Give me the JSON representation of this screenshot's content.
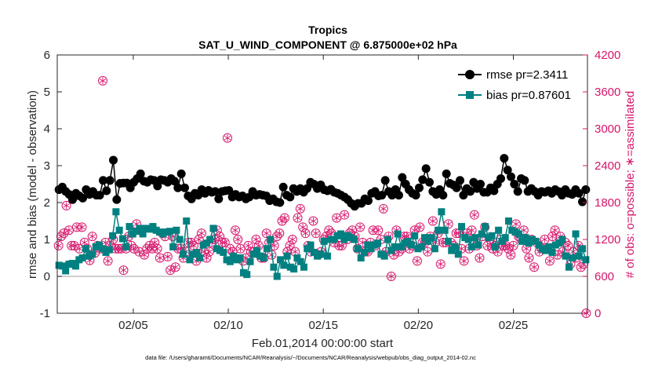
{
  "chart_data": {
    "type": "line",
    "title": "Tropics",
    "subtitle": "SAT_U_WIND_COMPONENT @ 6.875000e+02 hPa",
    "xlabel": "Feb.01,2014 00:00:00 start",
    "ylabel": "rmse and bias (model - observation)",
    "ylabel_right": "# of obs: o=possible; ∗=assimilated",
    "footer": "data file: /Users/gharamti/Documents/NCAR/Reanalysis/~/Documents/NCAR/Reanalysis/webpub/obs_diag_output_2014-02.nc",
    "xlim": [
      1.0,
      28.9
    ],
    "ylim": [
      -1,
      6
    ],
    "ylim_right": [
      0,
      4200
    ],
    "x_ticks": [
      5,
      10,
      15,
      20,
      25
    ],
    "x_tick_labels": [
      "02/05",
      "02/10",
      "02/15",
      "02/20",
      "02/25"
    ],
    "y_ticks": [
      "-1",
      "0",
      "1",
      "2",
      "3",
      "4",
      "5",
      "6"
    ],
    "y_ticks_right": [
      "0",
      "600",
      "1200",
      "1800",
      "2400",
      "3000",
      "3600",
      "4200"
    ],
    "grid": false,
    "legend_position": "top-right",
    "colors": {
      "rmse": "#000000",
      "bias": "#008080",
      "obs": "#d6156b",
      "zero_line": "#b0b0b0"
    },
    "series": [
      {
        "name": "rmse pr=2.3411",
        "marker": "circle",
        "values": [
          2.35,
          2.42,
          2.3,
          2.22,
          2.08,
          2.25,
          2.18,
          2.12,
          2.35,
          2.22,
          2.3,
          2.2,
          2.2,
          2.6,
          2.32,
          2.6,
          3.15,
          2.08,
          2.52,
          2.53,
          2.53,
          2.4,
          2.55,
          2.65,
          2.78,
          2.58,
          2.55,
          2.62,
          2.6,
          2.45,
          2.62,
          2.6,
          2.55,
          2.65,
          2.58,
          2.4,
          2.78,
          2.4,
          2.18,
          2.1,
          2.25,
          2.2,
          2.35,
          2.25,
          2.33,
          2.28,
          2.3,
          2.1,
          2.3,
          2.32,
          2.33,
          2.15,
          2.22,
          2.15,
          2.18,
          2.1,
          2.15,
          2.3,
          2.2,
          2.22,
          2.2,
          2.18,
          2.05,
          2.1,
          2.02,
          2.0,
          2.42,
          2.2,
          2.15,
          2.38,
          2.3,
          2.38,
          2.28,
          2.38,
          2.55,
          2.5,
          2.38,
          2.48,
          2.35,
          2.32,
          2.36,
          2.28,
          2.25,
          2.2,
          2.15,
          2.08,
          1.98,
          1.9,
          1.98,
          1.98,
          2.1,
          2.05,
          2.25,
          2.3,
          2.18,
          2.2,
          2.6,
          2.3,
          2.2,
          2.35,
          2.2,
          2.68,
          2.5,
          2.35,
          2.25,
          2.2,
          2.4,
          2.62,
          2.92,
          2.55,
          2.3,
          2.22,
          2.35,
          2.2,
          2.78,
          2.52,
          2.48,
          2.4,
          2.6,
          2.2,
          2.38,
          2.3,
          2.55,
          2.38,
          2.5,
          2.28,
          2.28,
          2.4,
          2.32,
          2.5,
          2.65,
          3.2,
          2.88,
          2.7,
          2.5,
          2.3,
          2.65,
          2.6,
          2.3,
          2.38,
          2.3,
          2.2,
          2.3,
          2.28,
          2.32,
          2.25,
          2.35,
          2.3,
          2.2,
          2.35,
          2.25,
          2.22,
          2.35,
          2.25,
          2.02,
          2.35
        ]
      },
      {
        "name": "bias pr=0.87601",
        "marker": "square",
        "values": [
          0.3,
          0.28,
          0.15,
          0.33,
          0.35,
          0.28,
          0.45,
          0.5,
          0.75,
          0.55,
          0.6,
          0.8,
          0.85,
          0.75,
          0.65,
          0.72,
          1.1,
          1.75,
          1.25,
          1.02,
          0.8,
          1.35,
          1.15,
          1.22,
          1.3,
          1.15,
          1.3,
          1.28,
          1.35,
          1.25,
          1.2,
          1.15,
          1.2,
          1.22,
          0.8,
          1.25,
          1.0,
          0.6,
          1.5,
          0.45,
          0.6,
          0.65,
          0.5,
          0.85,
          0.9,
          1.0,
          1.3,
          0.75,
          0.7,
          0.65,
          0.45,
          0.4,
          0.55,
          0.45,
          0.5,
          0.1,
          0.05,
          0.4,
          0.6,
          0.7,
          0.55,
          0.5,
          0.75,
          1.0,
          0.25,
          0.0,
          0.45,
          0.3,
          0.55,
          0.25,
          0.2,
          0.5,
          0.4,
          0.25,
          0.75,
          0.85,
          0.65,
          0.55,
          0.6,
          0.95,
          0.55,
          1.0,
          1.0,
          1.1,
          1.15,
          1.0,
          1.1,
          1.05,
          1.0,
          0.75,
          0.5,
          0.65,
          0.85,
          0.75,
          0.85,
          0.9,
          0.6,
          0.55,
          1.0,
          0.7,
          0.8,
          1.15,
          0.8,
          0.9,
          0.95,
          0.85,
          1.1,
          0.75,
          0.8,
          1.05,
          0.95,
          1.05,
          0.75,
          1.25,
          1.75,
          1.25,
          0.95,
          0.7,
          0.8,
          0.6,
          1.35,
          1.05,
          1.0,
          0.8,
          1.05,
          0.85,
          1.15,
          1.35,
          1.05,
          1.1,
          0.8,
          1.25,
          0.95,
          1.05,
          1.5,
          1.25,
          1.2,
          1.15,
          0.95,
          1.05,
          0.9,
          1.0,
          0.95,
          0.85,
          0.75,
          0.7,
          0.8,
          0.65,
          0.85,
          0.9,
          1.0,
          0.55,
          0.25,
          0.5,
          1.15,
          0.55,
          0.75,
          0.45
        ]
      },
      {
        "name": "# of obs",
        "axis": "right",
        "marker": "circle-star",
        "values": [
          1100,
          1250,
          1300,
          1750,
          1350,
          1100,
          1100,
          1400,
          1050,
          1400,
          1150,
          1050,
          860,
          1250,
          980,
          1100,
          1050,
          3780,
          1150,
          850,
          1100,
          1200,
          1050,
          1050,
          1050,
          700,
          1050,
          1250,
          1100,
          1050,
          1450,
          1000,
          1350,
          950,
          1050,
          1100,
          1050,
          1150,
          1050,
          900,
          1300,
          1250,
          920,
          700,
          1250,
          750,
          1050,
          1050,
          900,
          1000,
          1150,
          1150,
          1100,
          850,
          1200,
          1300,
          1000,
          900,
          1000,
          1150,
          1200,
          1350,
          1250,
          1150,
          1150,
          2850,
          1050,
          1000,
          1350,
          1200,
          1050,
          850,
          900,
          1100,
          1000,
          1000,
          1200,
          1100,
          900,
          900,
          1300,
          1150,
          950,
          1100,
          1250,
          1300,
          1500,
          1550,
          1000,
          1100,
          1200,
          1000,
          1550,
          1700,
          1400,
          1300,
          1100,
          1000,
          1500,
          1300,
          950,
          1000,
          1200,
          1250,
          1350,
          1300,
          1150,
          1550,
          1100,
          1100,
          1600,
          1200,
          1300,
          1350,
          1250,
          1050,
          1400,
          1150,
          1000,
          1000,
          1150,
          1350,
          1100,
          1350,
          1200,
          1700,
          1000,
          1250,
          600,
          950,
          1350,
          1000,
          1050,
          1250,
          1250,
          1050,
          1100,
          1350,
          850,
          1400,
          1150,
          1150,
          1000,
          1250,
          1500,
          1150,
          1300,
          800,
          1150,
          1150,
          1450,
          1150,
          1100,
          1300,
          1300,
          1050,
          850,
          1300,
          1050,
          1350,
          1600,
          1100,
          900,
          1250,
          1400,
          1100,
          1200,
          1050,
          1100,
          1000,
          1200,
          1100,
          1100,
          1050,
          950,
          1100,
          1450,
          1250,
          1200,
          1350,
          1050,
          900,
          1200,
          750,
          1150,
          1000,
          1050,
          1200,
          1050,
          850,
          1250,
          1350,
          950,
          1250,
          1000,
          1150,
          1100,
          800,
          1000,
          900,
          1100,
          750,
          800,
          0
        ]
      }
    ]
  }
}
